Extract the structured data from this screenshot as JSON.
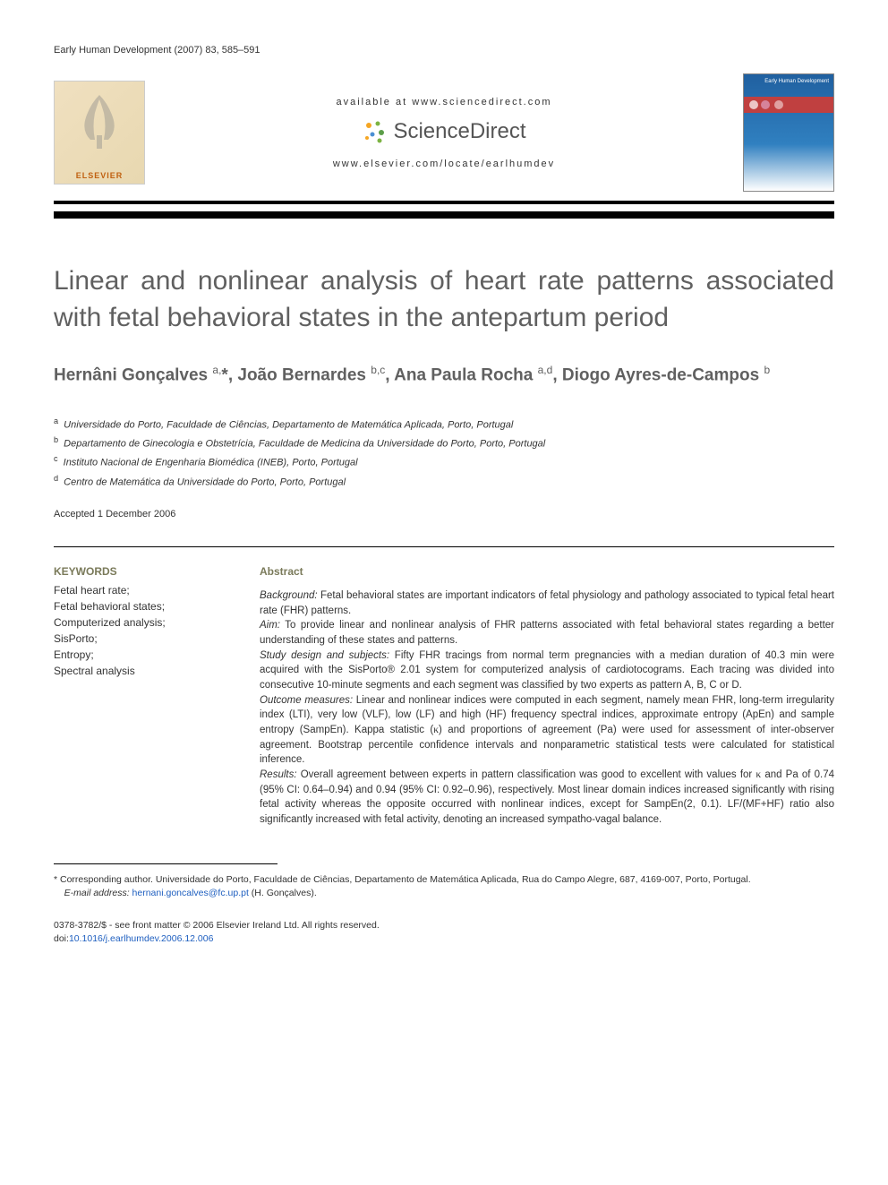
{
  "journal_header": "Early Human Development (2007) 83, 585–591",
  "banner": {
    "elsevier_label": "ELSEVIER",
    "available_text": "available at www.sciencedirect.com",
    "sciencedirect_label": "ScienceDirect",
    "journal_url": "www.elsevier.com/locate/earlhumdev",
    "cover_title": "Early Human Development"
  },
  "title": "Linear and nonlinear analysis of heart rate patterns associated with fetal behavioral states in the antepartum period",
  "authors_html": "Hernâni Gonçalves <sup>a,</sup>*, João Bernardes <sup>b,c</sup>, Ana Paula Rocha <sup>a,d</sup>, Diogo Ayres-de-Campos <sup>b</sup>",
  "affiliations": [
    {
      "sup": "a",
      "text": "Universidade do Porto, Faculdade de Ciências, Departamento de Matemática Aplicada, Porto, Portugal"
    },
    {
      "sup": "b",
      "text": "Departamento de Ginecologia e Obstetrícia, Faculdade de Medicina da Universidade do Porto, Porto, Portugal"
    },
    {
      "sup": "c",
      "text": "Instituto Nacional de Engenharia Biomédica (INEB), Porto, Portugal"
    },
    {
      "sup": "d",
      "text": "Centro de Matemática da Universidade do Porto, Porto, Portugal"
    }
  ],
  "accepted": "Accepted 1 December 2006",
  "keywords": {
    "heading": "KEYWORDS",
    "items": [
      "Fetal heart rate;",
      "Fetal behavioral states;",
      "Computerized analysis;",
      "SisPorto;",
      "Entropy;",
      "Spectral analysis"
    ]
  },
  "abstract": {
    "heading": "Abstract",
    "sections": [
      {
        "label": "Background:",
        "text": "Fetal behavioral states are important indicators of fetal physiology and pathology associated to typical fetal heart rate (FHR) patterns."
      },
      {
        "label": "Aim:",
        "text": "To provide linear and nonlinear analysis of FHR patterns associated with fetal behavioral states regarding a better understanding of these states and patterns."
      },
      {
        "label": "Study design and subjects:",
        "text": "Fifty FHR tracings from normal term pregnancies with a median duration of 40.3 min were acquired with the SisPorto® 2.01 system for computerized analysis of cardiotocograms. Each tracing was divided into consecutive 10-minute segments and each segment was classified by two experts as pattern A, B, C or D."
      },
      {
        "label": "Outcome measures:",
        "text": "Linear and nonlinear indices were computed in each segment, namely mean FHR, long-term irregularity index (LTI), very low (VLF), low (LF) and high (HF) frequency spectral indices, approximate entropy (ApEn) and sample entropy (SampEn). Kappa statistic (κ) and proportions of agreement (Pa) were used for assessment of inter-observer agreement. Bootstrap percentile confidence intervals and nonparametric statistical tests were calculated for statistical inference."
      },
      {
        "label": "Results:",
        "text": "Overall agreement between experts in pattern classification was good to excellent with values for κ and Pa of 0.74 (95% CI: 0.64–0.94) and 0.94 (95% CI: 0.92–0.96), respectively. Most linear domain indices increased significantly with rising fetal activity whereas the opposite occurred with nonlinear indices, except for SampEn(2, 0.1). LF/(MF+HF) ratio also significantly increased with fetal activity, denoting an increased sympatho-vagal balance."
      }
    ]
  },
  "footer": {
    "corresponding": "* Corresponding author. Universidade do Porto, Faculdade de Ciências, Departamento de Matemática Aplicada, Rua do Campo Alegre, 687, 4169-007, Porto, Portugal.",
    "email_label": "E-mail address:",
    "email": "hernani.goncalves@fc.up.pt",
    "email_author": "(H. Gonçalves).",
    "copyright_line": "0378-3782/$ - see front matter © 2006 Elsevier Ireland Ltd. All rights reserved.",
    "doi_label": "doi:",
    "doi": "10.1016/j.earlhumdev.2006.12.006"
  },
  "colors": {
    "title_gray": "#606060",
    "heading_olive": "#7a7a5a",
    "link_blue": "#2060c0",
    "elsevier_orange": "#c06010",
    "cover_blue_top": "#2060a0",
    "cover_blue_bottom": "#3080c0",
    "cover_strip": "#c04040"
  }
}
